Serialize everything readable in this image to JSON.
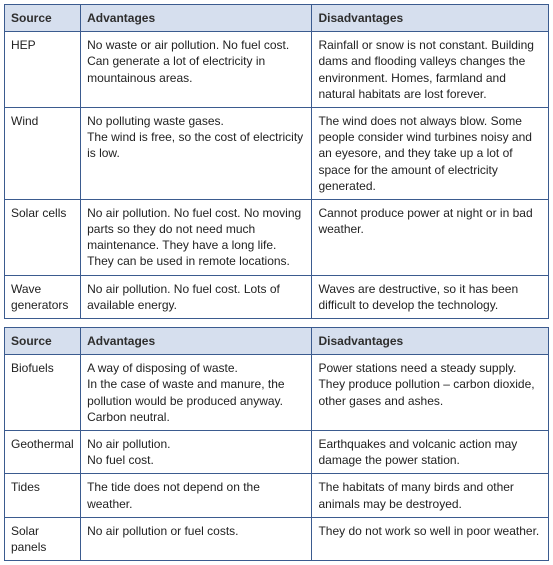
{
  "headers": {
    "source": "Source",
    "advantages": "Advantages",
    "disadvantages": "Disadvantages"
  },
  "table1": [
    {
      "source": "HEP",
      "adv": "No waste or air pollution. No fuel cost. Can generate a lot of electricity in mountainous areas.",
      "dis": "Rainfall or snow is not constant. Building dams and flooding valleys changes the environment. Homes, farmland and natural habitats are lost forever."
    },
    {
      "source": "Wind",
      "adv": "No polluting waste gases.\nThe wind is free, so the cost of electricity is low.",
      "dis": "The wind does not always blow. Some people consider wind turbines noisy and an eyesore, and they take up a lot of space for the amount of electricity generated."
    },
    {
      "source": "Solar cells",
      "adv": "No air pollution. No fuel cost. No moving parts so they do not need much maintenance. They have a long life.\nThey can be used in remote locations.",
      "dis": "Cannot produce power at night or in bad weather."
    },
    {
      "source": "Wave generators",
      "adv": "No air pollution. No fuel cost. Lots of available energy.",
      "dis": "Waves are destructive, so it has been difficult to develop the technology."
    }
  ],
  "table2": [
    {
      "source": "Biofuels",
      "adv": "A way of disposing of waste.\nIn the case of waste and manure, the pollution would be produced anyway. Carbon neutral.",
      "dis": "Power stations need a steady supply. They produce pollution – carbon dioxide, other gases and ashes."
    },
    {
      "source": "Geothermal",
      "adv": "No air pollution.\nNo fuel cost.",
      "dis": "Earthquakes and volcanic action may damage the power station."
    },
    {
      "source": "Tides",
      "adv": "The tide does not depend on the weather.",
      "dis": "The habitats of many birds and other animals may be destroyed."
    },
    {
      "source": "Solar panels",
      "adv": "No air pollution or fuel costs.",
      "dis": "They do not work so well in poor weather."
    }
  ]
}
